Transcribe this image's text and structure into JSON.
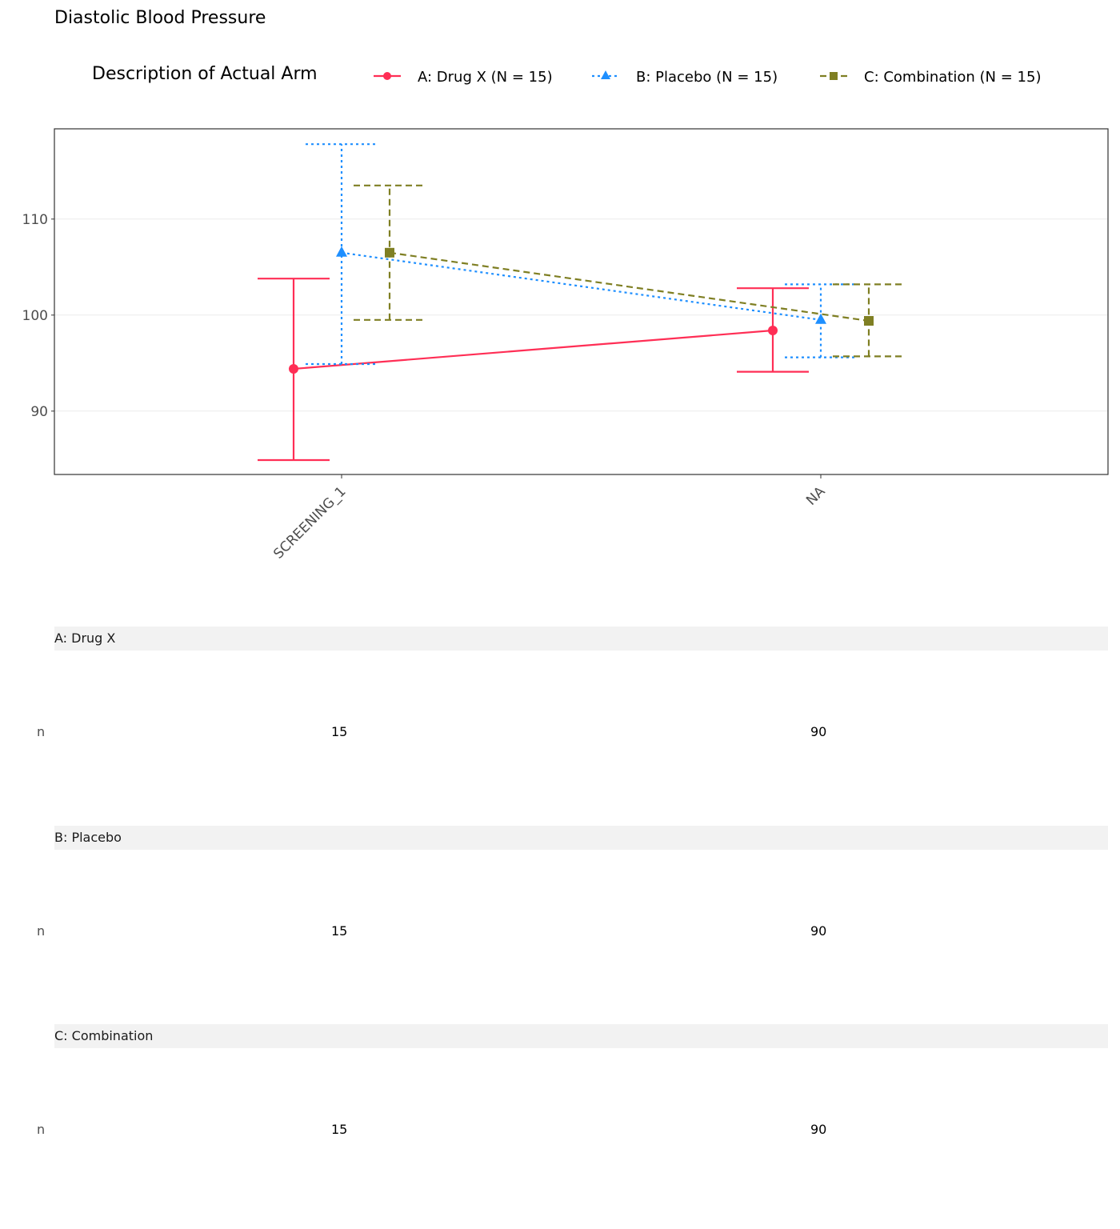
{
  "chart_data": {
    "type": "line",
    "title": "Diastolic Blood Pressure",
    "legend_title": "Description of Actual Arm",
    "legend_position": "top",
    "categories": [
      "SCREENING_1",
      "NA"
    ],
    "ylim": [
      83.4,
      119.4
    ],
    "yticks": [
      90,
      100,
      110
    ],
    "grid": true,
    "series": [
      {
        "name": "A: Drug X (N = 15)",
        "color": "#FF2E55",
        "marker": "circle",
        "dash": "",
        "mean": [
          94.4,
          98.4
        ],
        "lower": [
          84.9,
          94.1
        ],
        "upper": [
          103.8,
          102.8
        ]
      },
      {
        "name": "B: Placebo (N = 15)",
        "color": "#1E8FFF",
        "marker": "triangle",
        "dash": "3,4",
        "mean": [
          106.5,
          99.5
        ],
        "lower": [
          94.9,
          95.6
        ],
        "upper": [
          117.8,
          103.2
        ]
      },
      {
        "name": "C: Combination (N = 15)",
        "color": "#7F7F23",
        "marker": "square",
        "dash": "8,5",
        "mean": [
          106.5,
          99.4
        ],
        "lower": [
          99.5,
          95.7
        ],
        "upper": [
          113.5,
          103.2
        ]
      }
    ]
  },
  "table": {
    "groups": [
      {
        "label": "A: Drug X",
        "row_label": "n",
        "values": [
          "15",
          "90"
        ]
      },
      {
        "label": "B: Placebo",
        "row_label": "n",
        "values": [
          "15",
          "90"
        ]
      },
      {
        "label": "C: Combination",
        "row_label": "n",
        "values": [
          "15",
          "90"
        ]
      }
    ]
  }
}
